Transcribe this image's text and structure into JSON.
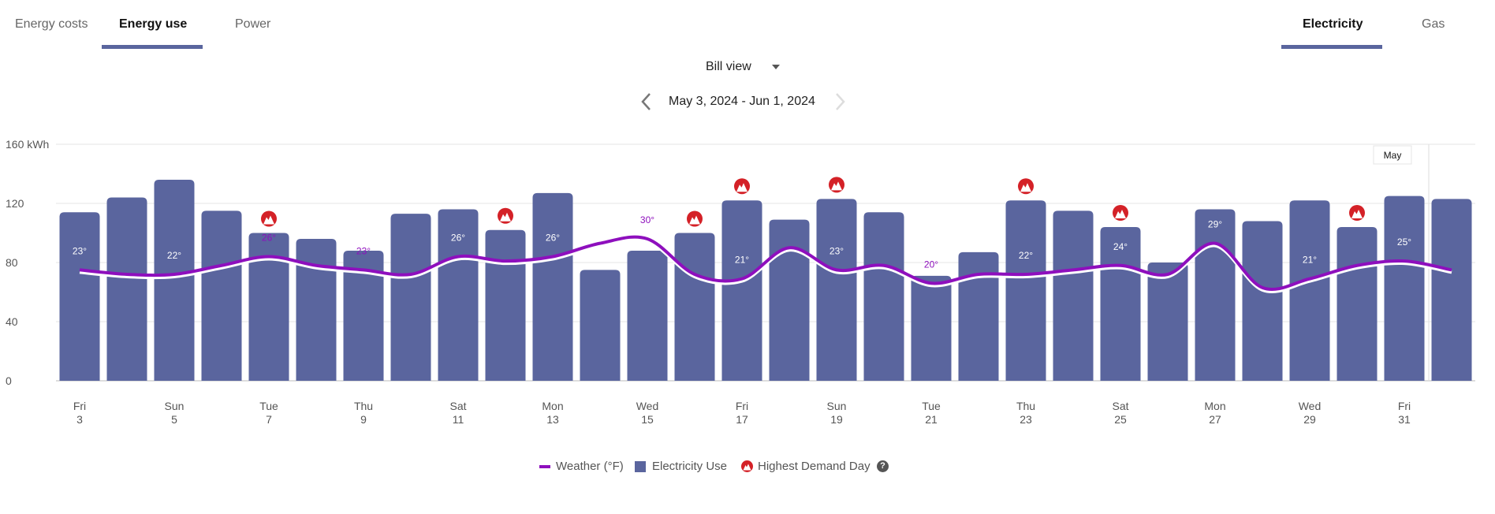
{
  "tabs": {
    "left": [
      {
        "label": "Energy costs",
        "active": false
      },
      {
        "label": "Energy use",
        "active": true
      },
      {
        "label": "Power",
        "active": false
      }
    ],
    "right": [
      {
        "label": "Electricity",
        "active": true
      },
      {
        "label": "Gas",
        "active": false
      }
    ]
  },
  "view_select": {
    "value": "Bill view",
    "icon": "caret-down-icon"
  },
  "date_range": {
    "label": "May 3, 2024 - Jun 1, 2024",
    "prev_icon": "chevron-left-icon",
    "next_icon": "chevron-right-icon",
    "next_enabled": false
  },
  "legend": {
    "weather": "Weather (°F)",
    "usage": "Electricity Use",
    "demand": "Highest Demand Day",
    "help_icon": "question-circle-icon"
  },
  "colors": {
    "bar": "#5a659e",
    "line": "#8e0fbd",
    "demand": "#d42127",
    "accent": "#5a659e"
  },
  "chart_data": {
    "type": "bar",
    "ylabel_unit": "kWh",
    "ylim": [
      0,
      160
    ],
    "yticks": [
      "0",
      "40",
      "80",
      "120",
      "160 kWh"
    ],
    "grid": true,
    "month_marker": "May",
    "categories": [
      "May 3",
      "May 4",
      "May 5",
      "May 6",
      "May 7",
      "May 8",
      "May 9",
      "May 10",
      "May 11",
      "May 12",
      "May 13",
      "May 14",
      "May 15",
      "May 16",
      "May 17",
      "May 18",
      "May 19",
      "May 20",
      "May 21",
      "May 22",
      "May 23",
      "May 24",
      "May 25",
      "May 26",
      "May 27",
      "May 28",
      "May 29",
      "May 30",
      "May 31",
      "Jun 1"
    ],
    "xticks": [
      {
        "day": "Fri",
        "date": "3"
      },
      {
        "day": "Sun",
        "date": "5"
      },
      {
        "day": "Tue",
        "date": "7"
      },
      {
        "day": "Thu",
        "date": "9"
      },
      {
        "day": "Sat",
        "date": "11"
      },
      {
        "day": "Mon",
        "date": "13"
      },
      {
        "day": "Wed",
        "date": "15"
      },
      {
        "day": "Fri",
        "date": "17"
      },
      {
        "day": "Sun",
        "date": "19"
      },
      {
        "day": "Tue",
        "date": "21"
      },
      {
        "day": "Thu",
        "date": "23"
      },
      {
        "day": "Sat",
        "date": "25"
      },
      {
        "day": "Mon",
        "date": "27"
      },
      {
        "day": "Wed",
        "date": "29"
      },
      {
        "day": "Fri",
        "date": "31"
      }
    ],
    "series": [
      {
        "name": "Electricity Use",
        "type": "bar",
        "values": [
          114,
          124,
          136,
          115,
          100,
          96,
          88,
          113,
          116,
          102,
          127,
          75,
          88,
          100,
          122,
          109,
          123,
          114,
          71,
          87,
          122,
          115,
          104,
          80,
          116,
          108,
          122,
          104,
          125,
          123
        ]
      },
      {
        "name": "Weather (°F)",
        "type": "line",
        "values": [
          23,
          22,
          22,
          24,
          26,
          24,
          23,
          22,
          26,
          25,
          26,
          29,
          30,
          22,
          21,
          28,
          23,
          24,
          20,
          22,
          22,
          23,
          24,
          22,
          29,
          19,
          21,
          24,
          25,
          23
        ]
      }
    ],
    "temperature_labels": [
      "23°",
      "22°",
      "26°",
      "23°",
      "26°",
      "26°",
      "30°",
      "21°",
      "23°",
      "20°",
      "22°",
      "24°",
      "29°",
      "21°",
      "25°"
    ],
    "highest_demand_days": [
      "May 7",
      "May 12",
      "May 16",
      "May 17",
      "May 19",
      "May 23",
      "May 25",
      "May 30"
    ]
  }
}
